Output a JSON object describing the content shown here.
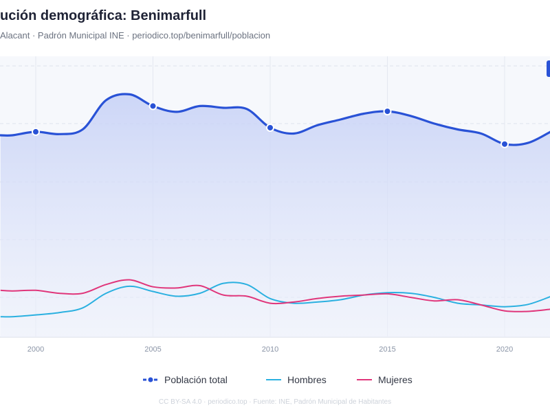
{
  "header": {
    "title": "ución demográfica: Benimarfull",
    "subtitle": "Alacant · Padrón Municipal INE · periodico.top/benimarfull/poblacion"
  },
  "legend": {
    "items": [
      {
        "label": "Población total",
        "color": "#2952d6",
        "style": "dashed-dot"
      },
      {
        "label": "Hombres",
        "color": "#2ab0e0",
        "style": "line"
      },
      {
        "label": "Mujeres",
        "color": "#e0357a",
        "style": "line"
      }
    ]
  },
  "footer": {
    "text": "CC BY-SA 4.0 · periodico.top · Fuente: INE, Padrón Municipal de Habitantes"
  },
  "chart_data": {
    "type": "line",
    "x_ticks": [
      2000,
      2005,
      2010,
      2015,
      2020
    ],
    "xlim": [
      1998.5,
      2022
    ],
    "ylim": [
      0,
      480
    ],
    "grid": true,
    "legend_position": "bottom",
    "series": [
      {
        "name": "Población total",
        "color": "#2952d6",
        "area": true,
        "marker_years": [
          2000,
          2005,
          2010,
          2015,
          2020
        ],
        "x": [
          1998.5,
          1999,
          2000,
          2001,
          2002,
          2003,
          2004,
          2005,
          2006,
          2007,
          2008,
          2009,
          2010,
          2011,
          2012,
          2013,
          2014,
          2015,
          2016,
          2017,
          2018,
          2019,
          2020,
          2021,
          2022
        ],
        "y": [
          345,
          345,
          351,
          347,
          355,
          405,
          415,
          395,
          385,
          395,
          392,
          390,
          358,
          348,
          362,
          372,
          382,
          386,
          378,
          365,
          355,
          348,
          330,
          332,
          352
        ]
      },
      {
        "name": "Hombres",
        "color": "#2ab0e0",
        "area": false,
        "x": [
          1998.5,
          1999,
          2000,
          2001,
          2002,
          2003,
          2004,
          2005,
          2006,
          2007,
          2008,
          2009,
          2010,
          2011,
          2012,
          2013,
          2014,
          2015,
          2016,
          2017,
          2018,
          2019,
          2020,
          2021,
          2022
        ],
        "y": [
          35,
          35,
          38,
          42,
          50,
          75,
          87,
          78,
          70,
          75,
          92,
          90,
          66,
          58,
          60,
          64,
          72,
          76,
          75,
          68,
          58,
          55,
          52,
          56,
          70
        ]
      },
      {
        "name": "Mujeres",
        "color": "#e0357a",
        "area": false,
        "x": [
          1998.5,
          1999,
          2000,
          2001,
          2002,
          2003,
          2004,
          2005,
          2006,
          2007,
          2008,
          2009,
          2010,
          2011,
          2012,
          2013,
          2014,
          2015,
          2016,
          2017,
          2018,
          2019,
          2020,
          2021,
          2022
        ],
        "y": [
          80,
          79,
          80,
          75,
          75,
          90,
          98,
          86,
          84,
          88,
          72,
          70,
          58,
          60,
          66,
          70,
          72,
          74,
          68,
          62,
          64,
          55,
          45,
          44,
          48
        ]
      }
    ]
  }
}
